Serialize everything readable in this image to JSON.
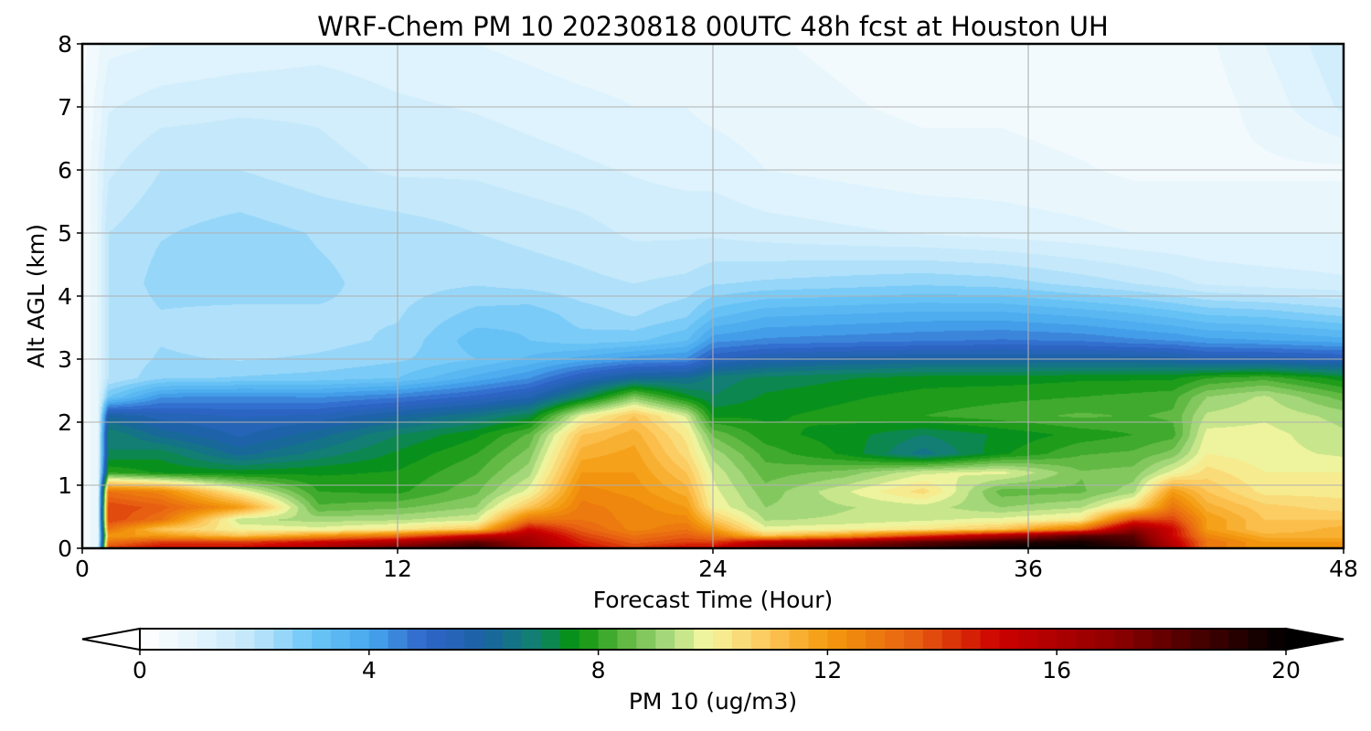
{
  "chart_data": {
    "type": "heatmap",
    "subtype": "filled-contour time-height cross-section",
    "title": "WRF-Chem PM 10  20230818 00UTC 48h fcst at Houston UH",
    "xlabel": "Forecast Time (Hour)",
    "ylabel": "Alt AGL (km)",
    "xlim": [
      0,
      48
    ],
    "ylim": [
      0,
      8
    ],
    "xticks": [
      "0",
      "12",
      "24",
      "36",
      "48"
    ],
    "yticks": [
      "0",
      "1",
      "2",
      "3",
      "4",
      "5",
      "6",
      "7",
      "8"
    ],
    "grid": true,
    "colorbar": {
      "label": "PM 10  (ug/m3)",
      "orientation": "horizontal",
      "position": "bottom",
      "extend": "both",
      "range": [
        0,
        20
      ],
      "ticks": [
        "0",
        "4",
        "8",
        "12",
        "16",
        "20"
      ],
      "colors": [
        {
          "value": 0,
          "color": "#ffffff"
        },
        {
          "value": 1,
          "color": "#e4f5fd"
        },
        {
          "value": 2,
          "color": "#bfe6fb"
        },
        {
          "value": 3,
          "color": "#6cc6f6"
        },
        {
          "value": 4,
          "color": "#47a8ee"
        },
        {
          "value": 5,
          "color": "#2f64c8"
        },
        {
          "value": 6,
          "color": "#1a63a4"
        },
        {
          "value": 7,
          "color": "#10836a"
        },
        {
          "value": 7.6,
          "color": "#06920c"
        },
        {
          "value": 8.4,
          "color": "#58b43c"
        },
        {
          "value": 9.2,
          "color": "#a7d97c"
        },
        {
          "value": 9.9,
          "color": "#f5f7a0"
        },
        {
          "value": 11,
          "color": "#fcc558"
        },
        {
          "value": 12,
          "color": "#f39a0c"
        },
        {
          "value": 13.5,
          "color": "#e76012"
        },
        {
          "value": 15,
          "color": "#cc0000"
        },
        {
          "value": 17,
          "color": "#8f0000"
        },
        {
          "value": 18.5,
          "color": "#450000"
        },
        {
          "value": 20,
          "color": "#000000"
        }
      ]
    },
    "x": [
      0,
      0.6,
      1,
      3,
      6,
      9,
      12,
      15,
      17,
      19,
      21,
      23,
      24,
      26,
      29,
      32,
      35,
      38,
      40,
      41.5,
      42.8,
      45,
      48
    ],
    "y": [
      0,
      0.1,
      0.2,
      0.3,
      0.45,
      0.65,
      0.9,
      1.2,
      1.5,
      1.8,
      2.1,
      2.4,
      2.7,
      3.0,
      3.3,
      3.7,
      4.2,
      5,
      6,
      7,
      8
    ],
    "z": [
      [
        0.3,
        1.0,
        14,
        15,
        15,
        16,
        18,
        19,
        17,
        15,
        14,
        15,
        15,
        17,
        18,
        19,
        20,
        20,
        19,
        16,
        13,
        12,
        12
      ],
      [
        0.3,
        1.0,
        13,
        14,
        14,
        15,
        16,
        18,
        16.5,
        14.5,
        13.5,
        14,
        14,
        15.5,
        16.5,
        18,
        19,
        19.5,
        18.5,
        15.5,
        13,
        12,
        12
      ],
      [
        0.3,
        1.0,
        12,
        12,
        11,
        12,
        13,
        15,
        16,
        14,
        13,
        13.5,
        13,
        11,
        12,
        14,
        16,
        18,
        18,
        15,
        12.5,
        11.5,
        11.5
      ],
      [
        0.3,
        1.0,
        13,
        11,
        10,
        9.8,
        10.2,
        11,
        15,
        13.5,
        12.5,
        13,
        12,
        9.8,
        10,
        10.3,
        11,
        13,
        17,
        15,
        12,
        11,
        11.5
      ],
      [
        0.3,
        1.0,
        14,
        13,
        9.4,
        9.2,
        9.3,
        9.6,
        13,
        13,
        12.5,
        12.5,
        11,
        9.3,
        9.4,
        9.6,
        9.8,
        10.2,
        14,
        14,
        12,
        11,
        11
      ],
      [
        0.3,
        1.0,
        14,
        13.5,
        12,
        8.4,
        8.6,
        9.0,
        11,
        12.8,
        12.5,
        12,
        10,
        9.0,
        9.3,
        9.5,
        9.0,
        9.3,
        10.5,
        13,
        11.5,
        10.8,
        10.5
      ],
      [
        0.3,
        1.0,
        13,
        12.5,
        10,
        8.0,
        7.9,
        8.6,
        9.8,
        12.5,
        12.2,
        11.5,
        9.8,
        8.8,
        9.6,
        10.5,
        8.5,
        8.6,
        9.2,
        12,
        11,
        10.2,
        10.2
      ],
      [
        0.3,
        1.0,
        8,
        7.6,
        7.5,
        7.6,
        7.7,
        8.3,
        9.2,
        12,
        12,
        11,
        9.6,
        8.5,
        8.8,
        9.6,
        9.8,
        8.7,
        8.8,
        9.8,
        10.5,
        10,
        10
      ],
      [
        0.3,
        1.0,
        7,
        7.2,
        6.2,
        6.8,
        7.4,
        8.0,
        8.8,
        11.5,
        11.8,
        10.5,
        9.2,
        8.2,
        7.6,
        6.5,
        7.6,
        8.3,
        8.4,
        8.8,
        10,
        9.8,
        9.6
      ],
      [
        0.3,
        1.0,
        7,
        6.2,
        5.6,
        6.2,
        7.0,
        7.6,
        8.4,
        11,
        11.5,
        10.2,
        8.6,
        7.8,
        7.5,
        7.0,
        7.4,
        7.8,
        8.0,
        8.2,
        9.8,
        9.8,
        9.4
      ],
      [
        0.3,
        1.0,
        6,
        5.5,
        5.3,
        5.4,
        6.0,
        6.6,
        7.2,
        9.8,
        11,
        9.6,
        7.6,
        7.6,
        7.8,
        8.0,
        8.2,
        8.4,
        8.3,
        8.4,
        9.4,
        9.6,
        9.2
      ],
      [
        0.3,
        1.0,
        3,
        4.3,
        4.4,
        4.3,
        4.6,
        5.1,
        5.6,
        7.0,
        8.8,
        7.5,
        7.0,
        7.4,
        7.6,
        7.8,
        7.9,
        8.0,
        8.1,
        8.2,
        9.0,
        9.4,
        8.5
      ],
      [
        0.3,
        1.0,
        2,
        2.6,
        2.7,
        2.8,
        3.0,
        3.8,
        4.3,
        5.4,
        6.2,
        6.3,
        6.8,
        7.1,
        7.3,
        7.5,
        7.5,
        7.6,
        7.6,
        7.6,
        8.0,
        8.2,
        7.5
      ],
      [
        0.3,
        1.0,
        2,
        2.4,
        2.3,
        2.4,
        2.6,
        3.0,
        3.4,
        3.8,
        4.2,
        4.4,
        5.3,
        5.7,
        5.9,
        6.0,
        6.0,
        6.0,
        6.0,
        5.9,
        5.6,
        5.6,
        5.4
      ],
      [
        0.3,
        1.0,
        2,
        2.3,
        2.1,
        2.2,
        2.4,
        3.2,
        3.0,
        2.8,
        2.9,
        3.3,
        4.2,
        4.4,
        4.5,
        4.6,
        4.7,
        4.6,
        4.4,
        4.3,
        4.1,
        4.0,
        3.8
      ],
      [
        0.3,
        1.0,
        2,
        2.3,
        2.2,
        2.3,
        2.3,
        2.8,
        2.9,
        2.5,
        2.3,
        2.6,
        3.2,
        3.6,
        3.7,
        3.8,
        3.8,
        3.6,
        3.4,
        3.2,
        3.0,
        2.9,
        2.6
      ],
      [
        0.3,
        1.0,
        2,
        2.5,
        2.6,
        2.4,
        2.2,
        2.3,
        2.2,
        2.1,
        2.0,
        2.1,
        2.3,
        2.4,
        2.5,
        2.6,
        2.5,
        2.2,
        2.0,
        1.8,
        1.6,
        1.5,
        1.4
      ],
      [
        0.3,
        1.0,
        2,
        2.3,
        2.5,
        2.3,
        2.2,
        2.0,
        1.9,
        1.8,
        1.6,
        1.6,
        1.6,
        1.5,
        1.4,
        1.3,
        1.2,
        1.1,
        1.0,
        1.0,
        1.0,
        1.0,
        1.0
      ],
      [
        0.3,
        1.0,
        1.6,
        2.0,
        2.0,
        1.8,
        1.6,
        1.6,
        1.5,
        1.4,
        1.3,
        1.2,
        1.2,
        1.0,
        0.9,
        0.8,
        0.8,
        0.7,
        0.6,
        0.6,
        0.6,
        0.6,
        0.6
      ],
      [
        0.3,
        0.8,
        1.3,
        1.5,
        1.6,
        1.6,
        1.4,
        1.3,
        1.2,
        1.1,
        1.0,
        1.0,
        0.9,
        0.8,
        0.7,
        0.6,
        0.6,
        0.5,
        0.5,
        0.5,
        0.5,
        0.8,
        1.4
      ],
      [
        0.2,
        0.6,
        0.9,
        1.0,
        1.1,
        1.2,
        1.1,
        1.0,
        0.9,
        0.8,
        0.8,
        0.8,
        0.7,
        0.7,
        0.6,
        0.5,
        0.5,
        0.4,
        0.4,
        0.4,
        0.6,
        1.0,
        1.6
      ]
    ]
  }
}
